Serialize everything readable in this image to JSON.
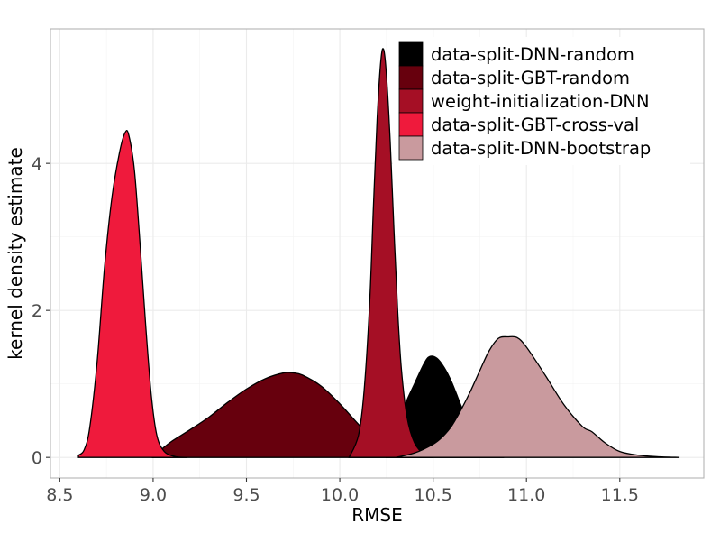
{
  "chart_data": {
    "type": "area",
    "xlabel": "RMSE",
    "ylabel": "kernel density estimate",
    "xlim": [
      8.45,
      11.95
    ],
    "ylim": [
      -0.28,
      5.83
    ],
    "x_ticks": [
      8.5,
      9.0,
      9.5,
      10.0,
      10.5,
      11.0,
      11.5
    ],
    "x_tick_labels": [
      "8.5",
      "9.0",
      "9.5",
      "10.0",
      "10.5",
      "11.0",
      "11.5"
    ],
    "y_ticks": [
      0,
      2,
      4
    ],
    "y_tick_labels": [
      "0",
      "2",
      "4"
    ],
    "grid": true,
    "legend_position": "top-right",
    "series": [
      {
        "name": "data-split-DNN-random",
        "color": "#000000",
        "points": [
          [
            10.25,
            0.0
          ],
          [
            10.3,
            0.35
          ],
          [
            10.35,
            0.72
          ],
          [
            10.4,
            1.0
          ],
          [
            10.45,
            1.27
          ],
          [
            10.48,
            1.37
          ],
          [
            10.52,
            1.35
          ],
          [
            10.56,
            1.22
          ],
          [
            10.6,
            1.02
          ],
          [
            10.65,
            0.7
          ],
          [
            10.7,
            0.38
          ],
          [
            10.76,
            0.12
          ],
          [
            10.82,
            0.02
          ],
          [
            10.88,
            0.0
          ]
        ]
      },
      {
        "name": "data-split-GBT-random",
        "color": "#67000D",
        "points": [
          [
            9.0,
            0.0
          ],
          [
            9.05,
            0.12
          ],
          [
            9.1,
            0.22
          ],
          [
            9.2,
            0.38
          ],
          [
            9.3,
            0.55
          ],
          [
            9.4,
            0.75
          ],
          [
            9.5,
            0.93
          ],
          [
            9.6,
            1.07
          ],
          [
            9.7,
            1.15
          ],
          [
            9.75,
            1.15
          ],
          [
            9.8,
            1.12
          ],
          [
            9.9,
            0.97
          ],
          [
            10.0,
            0.73
          ],
          [
            10.1,
            0.45
          ],
          [
            10.2,
            0.2
          ],
          [
            10.3,
            0.06
          ],
          [
            10.4,
            0.0
          ]
        ]
      },
      {
        "name": "weight-initialization-DNN",
        "color": "#A50F25",
        "points": [
          [
            10.05,
            0.0
          ],
          [
            10.1,
            0.3
          ],
          [
            10.13,
            0.9
          ],
          [
            10.16,
            2.1
          ],
          [
            10.18,
            3.4
          ],
          [
            10.2,
            4.6
          ],
          [
            10.22,
            5.4
          ],
          [
            10.235,
            5.55
          ],
          [
            10.25,
            5.2
          ],
          [
            10.27,
            4.3
          ],
          [
            10.29,
            3.1
          ],
          [
            10.31,
            2.0
          ],
          [
            10.33,
            1.2
          ],
          [
            10.36,
            0.55
          ],
          [
            10.4,
            0.2
          ],
          [
            10.45,
            0.05
          ],
          [
            10.5,
            0.0
          ]
        ]
      },
      {
        "name": "data-split-GBT-cross-val",
        "color": "#EF1A3C",
        "points": [
          [
            8.6,
            0.03
          ],
          [
            8.63,
            0.1
          ],
          [
            8.66,
            0.4
          ],
          [
            8.7,
            1.3
          ],
          [
            8.74,
            2.6
          ],
          [
            8.78,
            3.55
          ],
          [
            8.82,
            4.15
          ],
          [
            8.85,
            4.42
          ],
          [
            8.87,
            4.38
          ],
          [
            8.9,
            3.9
          ],
          [
            8.93,
            2.9
          ],
          [
            8.96,
            1.8
          ],
          [
            8.99,
            0.85
          ],
          [
            9.02,
            0.3
          ],
          [
            9.06,
            0.08
          ],
          [
            9.12,
            0.01
          ],
          [
            9.18,
            0.0
          ]
        ]
      },
      {
        "name": "data-split-DNN-bootstrap",
        "color": "#C99A9E",
        "points": [
          [
            10.3,
            0.0
          ],
          [
            10.4,
            0.06
          ],
          [
            10.5,
            0.18
          ],
          [
            10.55,
            0.28
          ],
          [
            10.6,
            0.43
          ],
          [
            10.65,
            0.65
          ],
          [
            10.7,
            0.9
          ],
          [
            10.75,
            1.18
          ],
          [
            10.8,
            1.45
          ],
          [
            10.85,
            1.62
          ],
          [
            10.9,
            1.64
          ],
          [
            10.95,
            1.63
          ],
          [
            11.0,
            1.5
          ],
          [
            11.1,
            1.12
          ],
          [
            11.2,
            0.72
          ],
          [
            11.3,
            0.42
          ],
          [
            11.35,
            0.35
          ],
          [
            11.42,
            0.2
          ],
          [
            11.5,
            0.08
          ],
          [
            11.6,
            0.03
          ],
          [
            11.7,
            0.01
          ],
          [
            11.82,
            0.0
          ]
        ]
      }
    ]
  }
}
